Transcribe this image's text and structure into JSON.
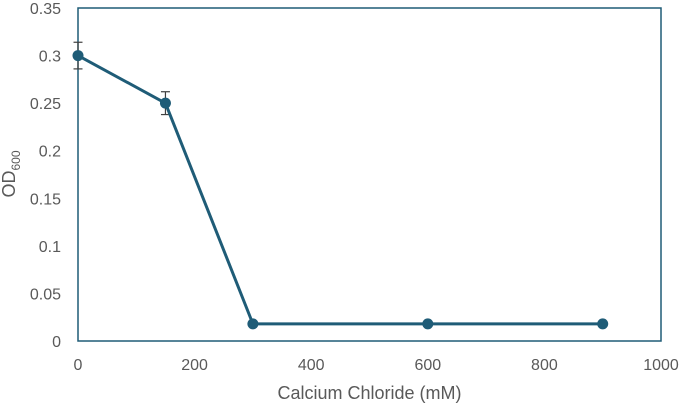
{
  "chart_data": {
    "type": "line",
    "title": "",
    "xlabel": "Calcium Chloride (mM)",
    "ylabel_main": "OD",
    "ylabel_sub": "600",
    "xlim": [
      0,
      1000
    ],
    "ylim": [
      0,
      0.35
    ],
    "x_ticks": [
      0,
      200,
      400,
      600,
      800,
      1000
    ],
    "y_ticks": [
      0,
      0.05,
      0.1,
      0.15,
      0.2,
      0.25,
      0.3,
      0.35
    ],
    "grid": false,
    "legend": "none",
    "series": [
      {
        "x": [
          0,
          150,
          300,
          600,
          900
        ],
        "y": [
          0.3,
          0.25,
          0.018,
          0.018,
          0.018
        ],
        "error": [
          0.014,
          0.012,
          0,
          0,
          0
        ]
      }
    ],
    "colors": {
      "line": "#1f5c77",
      "frame": "#1f5c77",
      "error_bar": "#404040",
      "text": "#595959"
    }
  }
}
